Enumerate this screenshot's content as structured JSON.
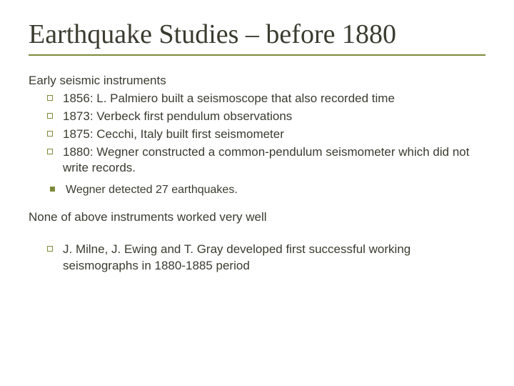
{
  "colors": {
    "text": "#3b3b30",
    "accent": "#7d8a3a",
    "background": "#ffffff"
  },
  "typography": {
    "title_font": "Times New Roman",
    "body_font": "Verdana",
    "title_size_pt": 38,
    "body_size_pt": 17,
    "sub_size_pt": 16
  },
  "slide": {
    "title": "Earthquake Studies – before 1880",
    "intro": "Early seismic instruments",
    "bullets1": [
      "1856: L. Palmiero built a seismoscope that also recorded time",
      "1873: Verbeck  first pendulum observations",
      "1875: Cecchi, Italy built first seismometer",
      "1880: Wegner  constructed a common-pendulum seismometer which did not write records."
    ],
    "sub_bullets": [
      "Wegner detected 27 earthquakes."
    ],
    "mid_text": "None of above instruments worked very well",
    "bullets2": [
      "J. Milne, J. Ewing and T. Gray developed first successful working seismographs in 1880-1885 period"
    ]
  }
}
